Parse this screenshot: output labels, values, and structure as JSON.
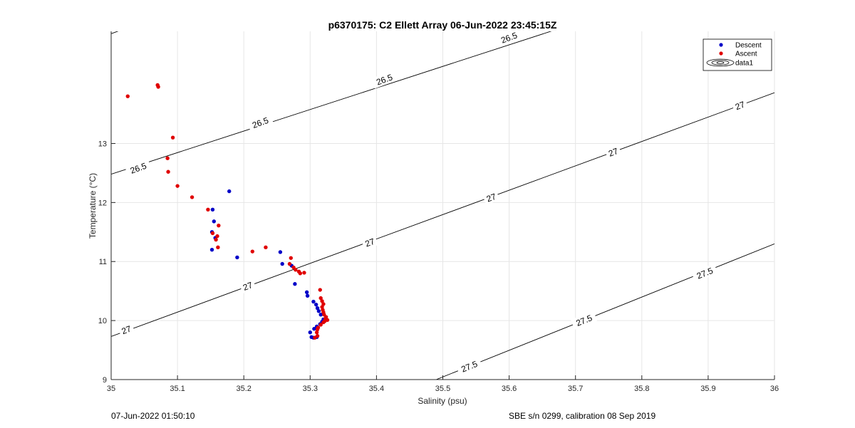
{
  "chart_data": {
    "type": "scatter",
    "title": "p6370175: C2 Ellett Array 06-Jun-2022 23:45:15Z",
    "xlabel": "Salinity (psu)",
    "ylabel": "Temperature (°C)",
    "xlim": [
      35,
      36
    ],
    "ylim": [
      9,
      14.9
    ],
    "xticks": [
      "35",
      "35.1",
      "35.2",
      "35.3",
      "35.4",
      "35.5",
      "35.6",
      "35.7",
      "35.8",
      "35.9",
      "36"
    ],
    "yticks": [
      "9",
      "10",
      "11",
      "12",
      "13"
    ],
    "grid": true,
    "legend_position": "top-right",
    "colors": {
      "Descent": "#0000c8",
      "Ascent": "#e00000",
      "contour": "#000000",
      "grid": "#e6e6e6"
    },
    "series": [
      {
        "name": "Descent",
        "marker": "dot",
        "points": [
          [
            35.178,
            12.19
          ],
          [
            35.153,
            11.88
          ],
          [
            35.155,
            11.68
          ],
          [
            35.152,
            11.5
          ],
          [
            35.157,
            11.4
          ],
          [
            35.152,
            11.2
          ],
          [
            35.19,
            11.07
          ],
          [
            35.255,
            11.16
          ],
          [
            35.258,
            10.96
          ],
          [
            35.272,
            10.93
          ],
          [
            35.277,
            10.62
          ],
          [
            35.295,
            10.48
          ],
          [
            35.296,
            10.42
          ],
          [
            35.305,
            10.32
          ],
          [
            35.309,
            10.27
          ],
          [
            35.311,
            10.21
          ],
          [
            35.313,
            10.16
          ],
          [
            35.316,
            10.1
          ],
          [
            35.32,
            10.02
          ],
          [
            35.318,
            9.98
          ],
          [
            35.315,
            9.94
          ],
          [
            35.31,
            9.9
          ],
          [
            35.306,
            9.86
          ],
          [
            35.3,
            9.8
          ],
          [
            35.302,
            9.72
          ],
          [
            35.305,
            9.71
          ],
          [
            35.31,
            9.72
          ]
        ]
      },
      {
        "name": "Ascent",
        "marker": "dot",
        "points": [
          [
            35.025,
            13.8
          ],
          [
            35.07,
            13.99
          ],
          [
            35.071,
            13.96
          ],
          [
            35.093,
            13.1
          ],
          [
            35.085,
            12.75
          ],
          [
            35.086,
            12.52
          ],
          [
            35.1,
            12.28
          ],
          [
            35.122,
            12.09
          ],
          [
            35.146,
            11.88
          ],
          [
            35.162,
            11.61
          ],
          [
            35.153,
            11.48
          ],
          [
            35.16,
            11.43
          ],
          [
            35.158,
            11.37
          ],
          [
            35.161,
            11.24
          ],
          [
            35.213,
            11.17
          ],
          [
            35.233,
            11.24
          ],
          [
            35.271,
            11.06
          ],
          [
            35.269,
            10.96
          ],
          [
            35.275,
            10.9
          ],
          [
            35.278,
            10.86
          ],
          [
            35.283,
            10.83
          ],
          [
            35.291,
            10.81
          ],
          [
            35.285,
            10.8
          ],
          [
            35.315,
            10.52
          ],
          [
            35.316,
            10.38
          ],
          [
            35.318,
            10.33
          ],
          [
            35.32,
            10.28
          ],
          [
            35.318,
            10.23
          ],
          [
            35.319,
            10.18
          ],
          [
            35.32,
            10.14
          ],
          [
            35.321,
            10.1
          ],
          [
            35.324,
            10.06
          ],
          [
            35.323,
            10.03
          ],
          [
            35.326,
            10.01
          ],
          [
            35.322,
            9.99
          ],
          [
            35.32,
            9.97
          ],
          [
            35.316,
            9.93
          ],
          [
            35.312,
            9.88
          ],
          [
            35.311,
            9.85
          ],
          [
            35.31,
            9.8
          ],
          [
            35.311,
            9.74
          ],
          [
            35.307,
            9.71
          ]
        ]
      },
      {
        "name": "data1",
        "marker": "contour",
        "points": []
      }
    ],
    "contours": [
      {
        "level": "26.5",
        "line": [
          [
            35.0,
            14.86
          ],
          [
            35.034,
            15.0
          ],
          [
            35.0,
            12.48
          ],
          [
            35.69,
            15.0
          ]
        ],
        "labels": [
          {
            "text": "26.5",
            "x": 35.041,
            "y": 12.58
          },
          {
            "text": "26.5",
            "x": 35.225,
            "y": 13.35
          },
          {
            "text": "26.5",
            "x": 35.412,
            "y": 14.08
          },
          {
            "text": "26.5",
            "x": 35.6,
            "y": 14.79
          }
        ]
      },
      {
        "level": "27",
        "line": [
          [
            35.0,
            9.73
          ],
          [
            36.0,
            13.86
          ]
        ],
        "labels": [
          {
            "text": "27",
            "x": 35.023,
            "y": 9.84
          },
          {
            "text": "27",
            "x": 35.206,
            "y": 10.58
          },
          {
            "text": "27",
            "x": 35.39,
            "y": 11.32
          },
          {
            "text": "27",
            "x": 35.573,
            "y": 12.08
          },
          {
            "text": "27",
            "x": 35.757,
            "y": 12.85
          },
          {
            "text": "27",
            "x": 35.948,
            "y": 13.64
          }
        ]
      },
      {
        "level": "27.5",
        "line": [
          [
            35.49,
            9.0
          ],
          [
            36.0,
            11.3
          ]
        ],
        "labels": [
          {
            "text": "27.5",
            "x": 35.54,
            "y": 9.22
          },
          {
            "text": "27.5",
            "x": 35.713,
            "y": 10.0
          },
          {
            "text": "27.5",
            "x": 35.895,
            "y": 10.8
          }
        ]
      }
    ]
  },
  "legend": {
    "items": [
      "Descent",
      "Ascent",
      "data1"
    ]
  },
  "footer": {
    "left": "07-Jun-2022 01:50:10",
    "right": "SBE s/n 0299, calibration 08 Sep 2019"
  }
}
